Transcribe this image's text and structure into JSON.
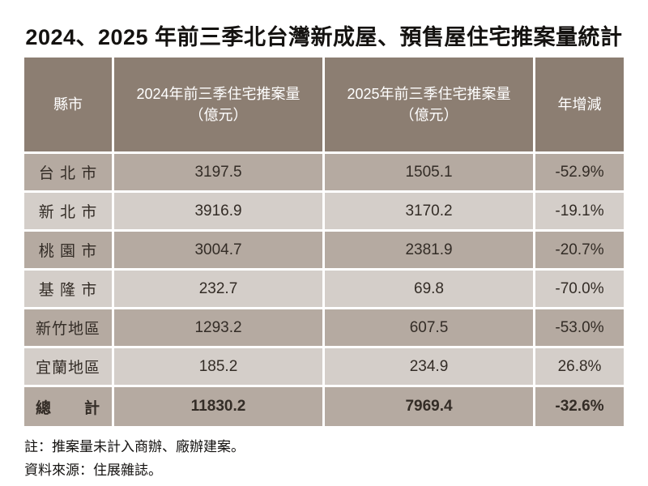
{
  "title": "2024、2025 年前三季北台灣新成屋、預售屋住宅推案量統計",
  "colors": {
    "header_bg": "#8c7e72",
    "row_dark": "#b5aaa1",
    "row_light": "#d4cec9",
    "header_text": "#ffffff",
    "body_text": "#332c26"
  },
  "table": {
    "headers": {
      "region": "縣市",
      "col2024_line1": "2024年前三季住宅推案量",
      "col2024_line2": "（億元）",
      "col2025_line1": "2025年前三季住宅推案量",
      "col2025_line2": "（億元）",
      "yoy": "年增減"
    },
    "rows": [
      {
        "region": "台 北 市",
        "v2024": "3197.5",
        "v2025": "1505.1",
        "yoy": "-52.9%"
      },
      {
        "region": "新 北 市",
        "v2024": "3916.9",
        "v2025": "3170.2",
        "yoy": "-19.1%"
      },
      {
        "region": "桃 園 市",
        "v2024": "3004.7",
        "v2025": "2381.9",
        "yoy": "-20.7%"
      },
      {
        "region": "基 隆 市",
        "v2024": "232.7",
        "v2025": "69.8",
        "yoy": "-70.0%"
      },
      {
        "region": "新竹地區",
        "v2024": "1293.2",
        "v2025": "607.5",
        "yoy": "-53.0%"
      },
      {
        "region": "宜蘭地區",
        "v2024": "185.2",
        "v2025": "234.9",
        "yoy": "26.8%"
      }
    ],
    "total": {
      "region": "總　　計",
      "v2024": "11830.2",
      "v2025": "7969.4",
      "yoy": "-32.6%"
    }
  },
  "notes": {
    "line1": "註：推案量未計入商辦、廠辦建案。",
    "line2": "資料來源：住展雜誌。"
  },
  "chart_data": {
    "type": "table",
    "title": "2024、2025 年前三季北台灣新成屋、預售屋住宅推案量統計",
    "columns": [
      "縣市",
      "2024年前三季住宅推案量（億元）",
      "2025年前三季住宅推案量（億元）",
      "年增減"
    ],
    "rows": [
      [
        "台北市",
        3197.5,
        1505.1,
        "-52.9%"
      ],
      [
        "新北市",
        3916.9,
        3170.2,
        "-19.1%"
      ],
      [
        "桃園市",
        3004.7,
        2381.9,
        "-20.7%"
      ],
      [
        "基隆市",
        232.7,
        69.8,
        "-70.0%"
      ],
      [
        "新竹地區",
        1293.2,
        607.5,
        "-53.0%"
      ],
      [
        "宜蘭地區",
        185.2,
        234.9,
        "26.8%"
      ]
    ],
    "total_row": [
      "總計",
      11830.2,
      7969.4,
      "-32.6%"
    ],
    "notes": [
      "註：推案量未計入商辦、廠辦建案。",
      "資料來源：住展雜誌。"
    ]
  }
}
